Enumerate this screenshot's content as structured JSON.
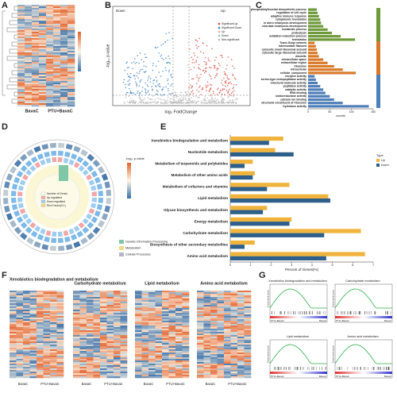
{
  "panel_a": {
    "label": "A",
    "columns": [
      "BavaC",
      "PTU+BavaC"
    ]
  },
  "panel_b": {
    "label": "B",
    "x_label": "log₂ FoldChange",
    "y_label": "-log₁₀ p-value",
    "left_note": "Down",
    "right_note": "Up",
    "legend": [
      "Significant up",
      "Significant Down",
      "Up",
      "Down",
      "Non-significant"
    ]
  },
  "panel_c": {
    "label": "C",
    "x_label": "counts",
    "xlim": [
      0,
      150
    ],
    "xticks": [
      0,
      50,
      100,
      150
    ],
    "groups": [
      {
        "color": "#6f9a3c",
        "terms": [
          "phosphatidylinositol biosynthetic process",
          "regulation of cell cycle",
          "adaptive immune response",
          "cytoplasmic translation",
          "in utero embryonic development",
          "chordate embryonic development",
          "metabolic process",
          "proteolysis",
          "oxidation-reduction process",
          "translation"
        ],
        "values": [
          20,
          22,
          25,
          28,
          30,
          35,
          45,
          55,
          75,
          108
        ]
      },
      {
        "color": "#d97a2b",
        "terms": [
          "Trans-Golgi network",
          "intermediate filament",
          "cytosolic small ribosomal subunit",
          "cytosolic large ribosomal subunit",
          "dendrite",
          "extracellular space",
          "extracellular region",
          "ribosome",
          "intracellular",
          "cellular_component"
        ],
        "values": [
          15,
          18,
          20,
          22,
          25,
          35,
          45,
          60,
          80,
          110
        ]
      },
      {
        "color": "#4f7fb8",
        "terms": [
          "receptor activity",
          "serine-type endopeptidase activity",
          "structural molecule activity",
          "peptidase activity",
          "catalytic activity",
          "RNA binding",
          "oxidoreductase activity",
          "calcium ion binding",
          "structural constituent of ribosome",
          "hydrolase activity"
        ],
        "values": [
          15,
          18,
          22,
          28,
          35,
          40,
          50,
          60,
          80,
          140
        ]
      }
    ]
  },
  "panel_d": {
    "label": "D",
    "legend": [
      "Number of Genes",
      "Up regulated",
      "Down regulated",
      "Rich Factor(0-1)"
    ],
    "colorbar_title": "-log₁₀ p-value",
    "classes": [
      {
        "name": "Genetic Information Processing",
        "color": "#7fc7a6"
      },
      {
        "name": "Metabolism",
        "color": "#f3d98a"
      },
      {
        "name": "Cellular Processes",
        "color": "#b7b7c9"
      }
    ]
  },
  "panel_e": {
    "label": "E",
    "type": "bar",
    "x_label": "Percent of Genes(%)",
    "legend_title": "Type",
    "xlim": [
      0,
      7
    ],
    "xticks": [
      0,
      1,
      2,
      3,
      4,
      5,
      6,
      7
    ],
    "categories": [
      "Xenobiotics biodegradation and metabolism",
      "Nucleotide metabolism",
      "Metabolism of terpenoids and polyketides",
      "Metabolism of other amino acids",
      "Metabolism of cofactors and vitamins",
      "Lipid metabolism",
      "Glycan biosynthesis and metabolism",
      "Energy metabolism",
      "Carbohydrate metabolism",
      "Biosynthesis of other secondary metabolites",
      "Amino acid metabolism"
    ],
    "series": [
      {
        "name": "Up",
        "color": "#f0b43c",
        "values": [
          2.6,
          2.2,
          1.1,
          1.2,
          2.9,
          4.8,
          1.8,
          3.0,
          6.4,
          1.2,
          6.6
        ]
      },
      {
        "name": "Down",
        "color": "#2d5f8a",
        "values": [
          1.9,
          3.1,
          0.7,
          1.1,
          1.8,
          4.9,
          1.6,
          2.9,
          4.6,
          0.7,
          4.7
        ]
      }
    ]
  },
  "panel_f": {
    "label": "F",
    "titles": [
      "Xenobiotics biodegradation and metabolism",
      "Carbohydrate metabolism",
      "Lipid metabolism",
      "Amino acid metabolism"
    ],
    "columns": [
      "BavaC",
      "PTU+BavaC"
    ]
  },
  "panel_g": {
    "label": "G",
    "titles": [
      "Xenobiotics biodegradation and metabolism",
      "Carbohydrate metabolism",
      "Lipid metabolism",
      "Amino acid metabolism"
    ],
    "y_label": "Enrichment score",
    "ends": [
      "PTU+BavaC",
      "BavaC"
    ]
  }
}
